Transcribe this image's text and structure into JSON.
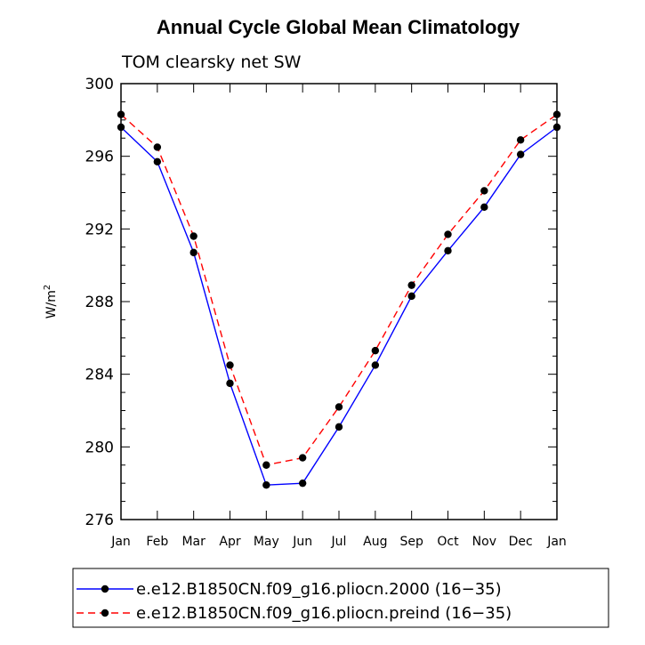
{
  "chart_data": {
    "type": "line",
    "title": "Annual Cycle Global Mean Climatology",
    "subtitle": "TOM clearsky net SW",
    "xlabel": "",
    "ylabel": "W/m",
    "ylabel_superscript": "2",
    "categories": [
      "Jan",
      "Feb",
      "Mar",
      "Apr",
      "May",
      "Jun",
      "Jul",
      "Aug",
      "Sep",
      "Oct",
      "Nov",
      "Dec",
      "Jan"
    ],
    "ylim": [
      276,
      300
    ],
    "yticks": [
      276,
      280,
      284,
      288,
      292,
      296,
      300
    ],
    "grid": false,
    "legend_position": "bottom",
    "series": [
      {
        "name": "e.e12.B1850CN.f09_g16.pliocn.2000 (16−35)",
        "color": "#0000ff",
        "line_style": "solid",
        "marker": "filled-circle",
        "values": [
          297.6,
          295.7,
          290.7,
          283.5,
          277.9,
          278.0,
          281.1,
          284.5,
          288.3,
          290.8,
          293.2,
          296.1,
          297.6
        ]
      },
      {
        "name": "e.e12.B1850CN.f09_g16.pliocn.preind (16−35)",
        "color": "#ff0000",
        "line_style": "dashed",
        "marker": "filled-circle",
        "values": [
          298.3,
          296.5,
          291.6,
          284.5,
          279.0,
          279.4,
          282.2,
          285.3,
          288.9,
          291.7,
          294.1,
          296.9,
          298.3
        ]
      }
    ]
  }
}
